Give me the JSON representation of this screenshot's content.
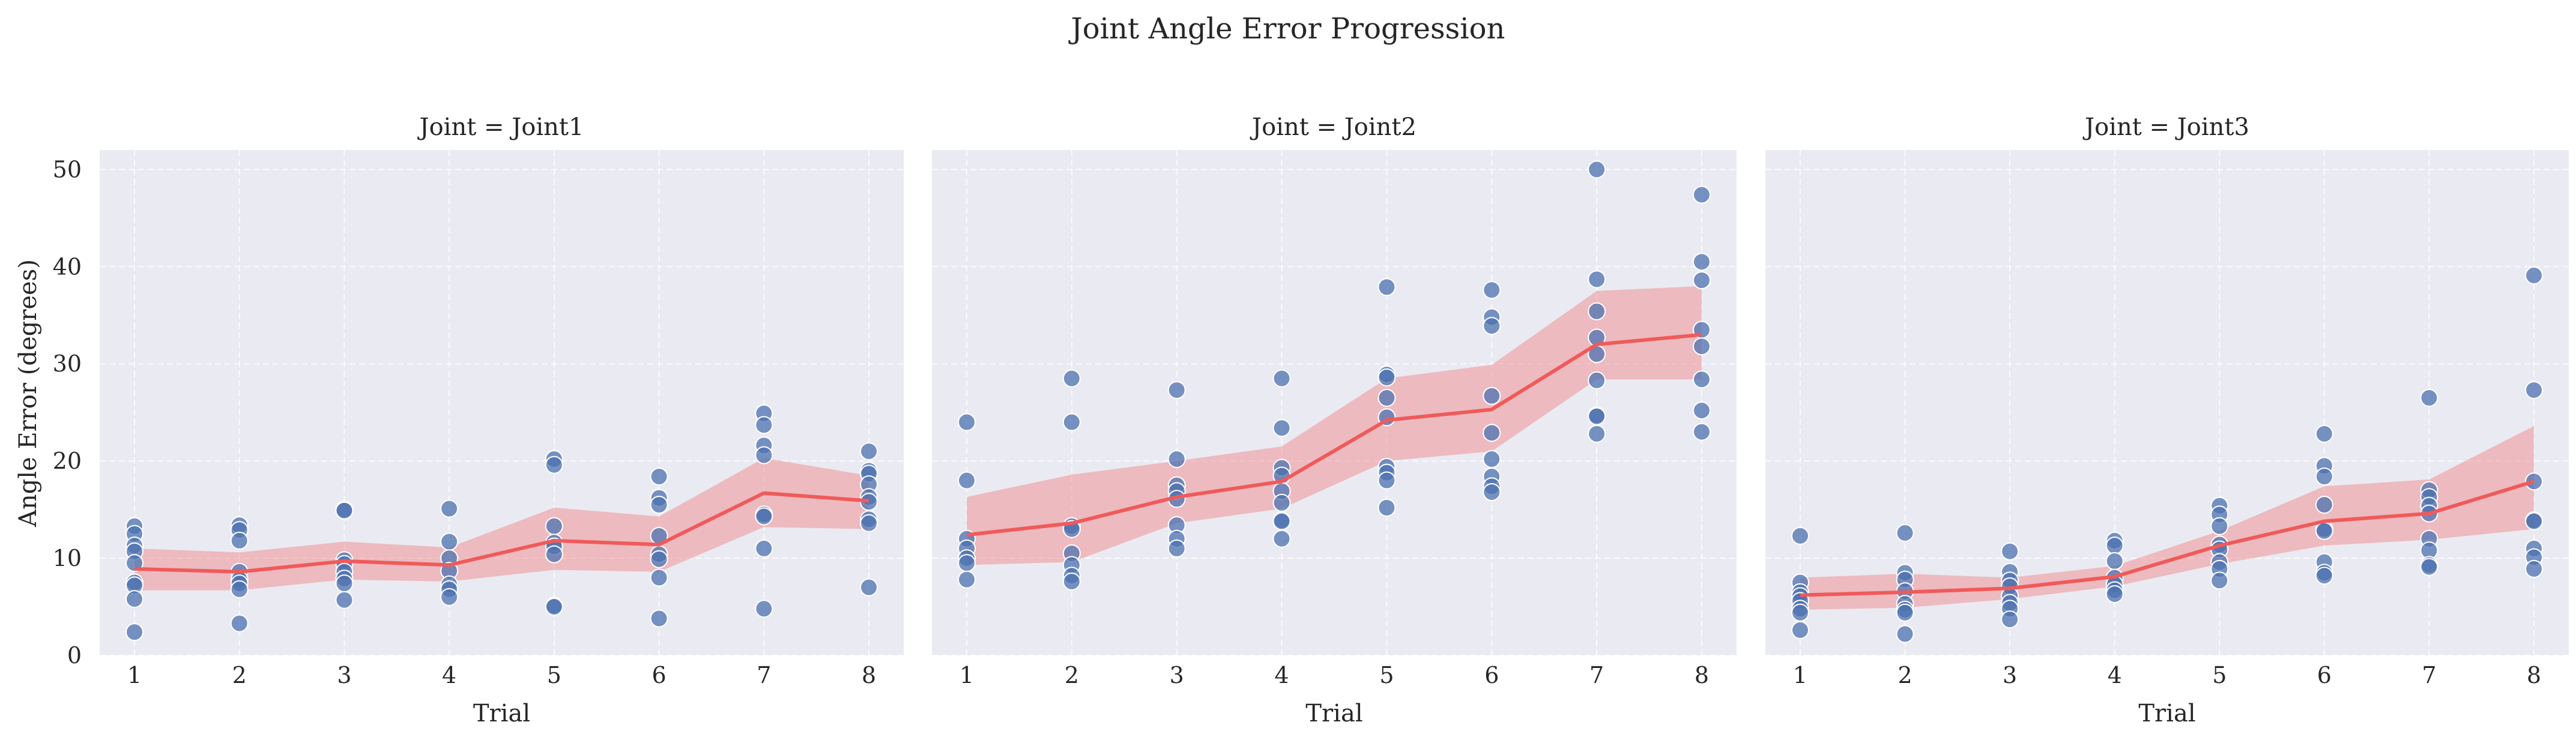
{
  "figure": {
    "title": "Joint Angle Error Progression",
    "ylabel": "Angle Error (degrees)"
  },
  "colors": {
    "panel_bg": "#eaeaf2",
    "grid": "#ffffff",
    "scatter": "#4c72b0",
    "mean_line": "#f05a5a",
    "ci_band": "#f08080"
  },
  "chart_data": [
    {
      "type": "scatter+line",
      "title": "Joint = Joint1",
      "xlabel": "Trial",
      "ylabel": "Angle Error (degrees)",
      "x_ticks": [
        1,
        2,
        3,
        4,
        5,
        6,
        7,
        8
      ],
      "y_ticks": [
        0,
        10,
        20,
        30,
        40,
        50
      ],
      "ylim": [
        0,
        52
      ],
      "grid": true,
      "points": [
        {
          "x": 1,
          "y": [
            13.3,
            12.5,
            11.3,
            10.7,
            9.5,
            7.5,
            7.2,
            5.8,
            2.4
          ]
        },
        {
          "x": 2,
          "y": [
            13.4,
            12.9,
            11.8,
            8.6,
            7.8,
            7.4,
            6.8,
            3.3
          ]
        },
        {
          "x": 3,
          "y": [
            15.0,
            14.9,
            9.8,
            9.4,
            8.6,
            7.9,
            7.4,
            5.7
          ]
        },
        {
          "x": 4,
          "y": [
            15.1,
            11.7,
            10.0,
            8.7,
            7.3,
            6.8,
            6.0
          ]
        },
        {
          "x": 5,
          "y": [
            20.2,
            19.6,
            13.3,
            11.6,
            11.2,
            10.4,
            5.1,
            5.0
          ]
        },
        {
          "x": 6,
          "y": [
            18.4,
            16.2,
            15.5,
            12.3,
            10.4,
            9.9,
            8.0,
            3.8
          ]
        },
        {
          "x": 7,
          "y": [
            24.9,
            23.7,
            21.6,
            20.6,
            14.5,
            14.3,
            11.0,
            4.8
          ]
        },
        {
          "x": 8,
          "y": [
            21.0,
            19.0,
            18.7,
            17.6,
            16.3,
            15.8,
            14.0,
            13.6,
            7.0
          ]
        }
      ],
      "mean_line": [
        8.9,
        8.6,
        9.7,
        9.3,
        11.8,
        11.4,
        16.7,
        15.9
      ],
      "ci_lower": [
        6.7,
        6.7,
        7.8,
        7.6,
        8.8,
        8.6,
        13.2,
        13.0
      ],
      "ci_upper": [
        11.0,
        10.6,
        11.7,
        11.1,
        15.2,
        14.3,
        20.3,
        18.5
      ]
    },
    {
      "type": "scatter+line",
      "title": "Joint = Joint2",
      "xlabel": "Trial",
      "x_ticks": [
        1,
        2,
        3,
        4,
        5,
        6,
        7,
        8
      ],
      "ylim": [
        0,
        52
      ],
      "grid": true,
      "points": [
        {
          "x": 1,
          "y": [
            24.0,
            18.0,
            12.0,
            11.0,
            10.0,
            9.5,
            7.8
          ]
        },
        {
          "x": 2,
          "y": [
            28.5,
            24.0,
            13.3,
            13.0,
            10.5,
            9.3,
            8.2,
            7.6
          ]
        },
        {
          "x": 3,
          "y": [
            27.3,
            20.2,
            17.5,
            16.9,
            16.1,
            13.4,
            12.0,
            11.0
          ]
        },
        {
          "x": 4,
          "y": [
            28.5,
            23.4,
            19.3,
            18.5,
            16.9,
            15.7,
            13.9,
            13.8,
            12.0
          ]
        },
        {
          "x": 5,
          "y": [
            37.9,
            28.9,
            28.6,
            26.5,
            24.5,
            19.4,
            18.8,
            18.0,
            15.2
          ]
        },
        {
          "x": 6,
          "y": [
            37.6,
            34.8,
            33.9,
            26.7,
            22.9,
            20.2,
            18.4,
            17.4,
            16.8
          ]
        },
        {
          "x": 7,
          "y": [
            50.0,
            38.7,
            35.4,
            32.7,
            31.0,
            28.3,
            24.7,
            24.6,
            22.8
          ]
        },
        {
          "x": 8,
          "y": [
            47.4,
            40.5,
            38.6,
            33.5,
            31.8,
            28.4,
            25.2,
            23.0
          ]
        }
      ],
      "mean_line": [
        12.4,
        13.6,
        16.3,
        17.9,
        24.2,
        25.3,
        32.0,
        33.0
      ],
      "ci_lower": [
        9.3,
        9.6,
        13.6,
        15.1,
        20.0,
        21.0,
        28.4,
        28.4
      ],
      "ci_upper": [
        16.3,
        18.6,
        20.0,
        21.5,
        28.5,
        29.9,
        37.5,
        38.0
      ]
    },
    {
      "type": "scatter+line",
      "title": "Joint = Joint3",
      "xlabel": "Trial",
      "x_ticks": [
        1,
        2,
        3,
        4,
        5,
        6,
        7,
        8
      ],
      "ylim": [
        0,
        52
      ],
      "grid": true,
      "points": [
        {
          "x": 1,
          "y": [
            12.3,
            7.5,
            6.5,
            6.1,
            5.6,
            4.8,
            4.4,
            2.6
          ]
        },
        {
          "x": 2,
          "y": [
            12.6,
            8.5,
            7.8,
            6.6,
            5.3,
            4.7,
            4.4,
            2.2
          ]
        },
        {
          "x": 3,
          "y": [
            10.7,
            8.6,
            7.7,
            7.1,
            6.1,
            5.4,
            4.8,
            3.7
          ]
        },
        {
          "x": 4,
          "y": [
            11.8,
            11.3,
            9.7,
            8.0,
            7.3,
            6.7,
            6.3
          ]
        },
        {
          "x": 5,
          "y": [
            15.4,
            14.5,
            13.3,
            11.4,
            10.9,
            9.6,
            8.9,
            7.7
          ]
        },
        {
          "x": 6,
          "y": [
            22.8,
            19.5,
            18.4,
            15.5,
            13.0,
            12.8,
            9.6,
            8.5,
            8.2
          ]
        },
        {
          "x": 7,
          "y": [
            26.5,
            17.0,
            16.3,
            15.4,
            14.6,
            12.0,
            10.8,
            9.3,
            9.1
          ]
        },
        {
          "x": 8,
          "y": [
            39.1,
            27.3,
            17.9,
            13.9,
            13.8,
            11.0,
            10.1,
            8.9
          ]
        }
      ],
      "mean_line": [
        6.2,
        6.5,
        6.9,
        8.1,
        11.3,
        13.8,
        14.6,
        17.9
      ],
      "ci_lower": [
        4.7,
        4.9,
        5.8,
        7.1,
        9.4,
        11.3,
        11.9,
        13.0
      ],
      "ci_upper": [
        8.0,
        8.4,
        8.0,
        9.2,
        12.8,
        17.4,
        18.1,
        23.6
      ]
    }
  ]
}
